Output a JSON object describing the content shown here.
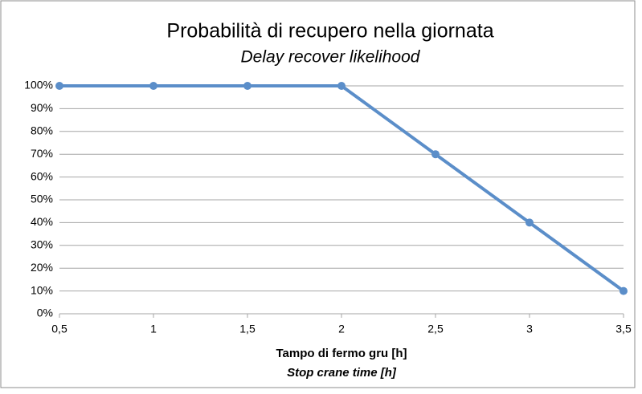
{
  "chart_data": {
    "type": "line",
    "title": "Probabilità di recupero nella giornata",
    "subtitle": "Delay recover likelihood",
    "x_label": "Tampo di fermo gru [h]",
    "x_label_subtitle": "Stop crane time [h]",
    "categories": [
      "0,5",
      "1",
      "1,5",
      "2",
      "2,5",
      "3",
      "3,5"
    ],
    "series": [
      {
        "color": "#5b8ec9",
        "values": [
          100,
          100,
          100,
          100,
          70,
          40,
          10
        ]
      }
    ],
    "ylim": [
      0,
      100
    ],
    "yticks": [
      {
        "value": 0,
        "label": "0%"
      },
      {
        "value": 10,
        "label": "10%"
      },
      {
        "value": 20,
        "label": "20%"
      },
      {
        "value": 30,
        "label": "30%"
      },
      {
        "value": 40,
        "label": "40%"
      },
      {
        "value": 50,
        "label": "50%"
      },
      {
        "value": 60,
        "label": "60%"
      },
      {
        "value": 70,
        "label": "70%"
      },
      {
        "value": 80,
        "label": "80%"
      },
      {
        "value": 90,
        "label": "90%"
      },
      {
        "value": 100,
        "label": "100%"
      }
    ],
    "grid": true
  }
}
